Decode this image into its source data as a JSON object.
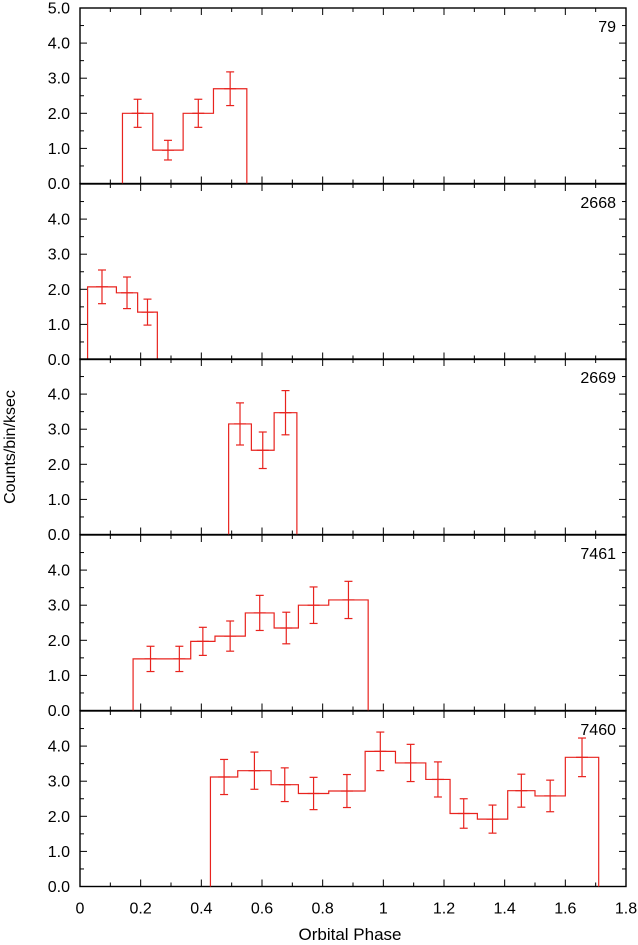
{
  "colors": {
    "series": "#e8231e",
    "frame": "#000000"
  },
  "chart_data": {
    "type": "step-histogram",
    "xlabel": "Orbital Phase",
    "ylabel": "Counts/bin/ksec",
    "xlim": [
      0,
      1.8
    ],
    "ylim": [
      0,
      5.0
    ],
    "x_ticks": [
      "0",
      "0.2",
      "0.4",
      "0.6",
      "0.8",
      "1",
      "1.2",
      "1.4",
      "1.6",
      "1.8"
    ],
    "y_ticks_top_panel": [
      "0.0",
      "1.0",
      "2.0",
      "3.0",
      "4.0",
      "5.0"
    ],
    "y_ticks_other_panels": [
      "0.0",
      "1.0",
      "2.0",
      "3.0",
      "4.0"
    ],
    "grid": false,
    "panels": [
      {
        "label": "79",
        "bins": [
          {
            "x0": 0.14,
            "x1": 0.24,
            "y": 2.0,
            "err": 0.4
          },
          {
            "x0": 0.24,
            "x1": 0.34,
            "y": 0.95,
            "err": 0.28
          },
          {
            "x0": 0.34,
            "x1": 0.44,
            "y": 2.0,
            "err": 0.4
          },
          {
            "x0": 0.44,
            "x1": 0.55,
            "y": 2.7,
            "err": 0.48
          }
        ]
      },
      {
        "label": "2668",
        "bins": [
          {
            "x0": 0.025,
            "x1": 0.12,
            "y": 2.07,
            "err": 0.48
          },
          {
            "x0": 0.12,
            "x1": 0.19,
            "y": 1.9,
            "err": 0.45
          },
          {
            "x0": 0.19,
            "x1": 0.255,
            "y": 1.35,
            "err": 0.37
          }
        ]
      },
      {
        "label": "2669",
        "bins": [
          {
            "x0": 0.49,
            "x1": 0.565,
            "y": 3.15,
            "err": 0.6
          },
          {
            "x0": 0.565,
            "x1": 0.64,
            "y": 2.4,
            "err": 0.52
          },
          {
            "x0": 0.64,
            "x1": 0.715,
            "y": 3.47,
            "err": 0.63
          }
        ]
      },
      {
        "label": "7461",
        "bins": [
          {
            "x0": 0.175,
            "x1": 0.29,
            "y": 1.47,
            "err": 0.36
          },
          {
            "x0": 0.29,
            "x1": 0.365,
            "y": 1.47,
            "err": 0.36
          },
          {
            "x0": 0.365,
            "x1": 0.445,
            "y": 1.97,
            "err": 0.4
          },
          {
            "x0": 0.445,
            "x1": 0.545,
            "y": 2.12,
            "err": 0.43
          },
          {
            "x0": 0.545,
            "x1": 0.64,
            "y": 2.78,
            "err": 0.5
          },
          {
            "x0": 0.64,
            "x1": 0.72,
            "y": 2.35,
            "err": 0.45
          },
          {
            "x0": 0.72,
            "x1": 0.82,
            "y": 3.0,
            "err": 0.52
          },
          {
            "x0": 0.82,
            "x1": 0.95,
            "y": 3.15,
            "err": 0.53
          }
        ]
      },
      {
        "label": "7460",
        "bins": [
          {
            "x0": 0.43,
            "x1": 0.52,
            "y": 3.12,
            "err": 0.5
          },
          {
            "x0": 0.52,
            "x1": 0.63,
            "y": 3.3,
            "err": 0.53
          },
          {
            "x0": 0.63,
            "x1": 0.72,
            "y": 2.9,
            "err": 0.48
          },
          {
            "x0": 0.72,
            "x1": 0.82,
            "y": 2.65,
            "err": 0.46
          },
          {
            "x0": 0.82,
            "x1": 0.94,
            "y": 2.72,
            "err": 0.47
          },
          {
            "x0": 0.94,
            "x1": 1.04,
            "y": 3.85,
            "err": 0.55
          },
          {
            "x0": 1.04,
            "x1": 1.14,
            "y": 3.52,
            "err": 0.53
          },
          {
            "x0": 1.14,
            "x1": 1.22,
            "y": 3.05,
            "err": 0.5
          },
          {
            "x0": 1.22,
            "x1": 1.31,
            "y": 2.08,
            "err": 0.42
          },
          {
            "x0": 1.31,
            "x1": 1.41,
            "y": 1.92,
            "err": 0.4
          },
          {
            "x0": 1.41,
            "x1": 1.5,
            "y": 2.73,
            "err": 0.47
          },
          {
            "x0": 1.5,
            "x1": 1.6,
            "y": 2.58,
            "err": 0.45
          },
          {
            "x0": 1.6,
            "x1": 1.71,
            "y": 3.68,
            "err": 0.55
          }
        ]
      }
    ]
  }
}
